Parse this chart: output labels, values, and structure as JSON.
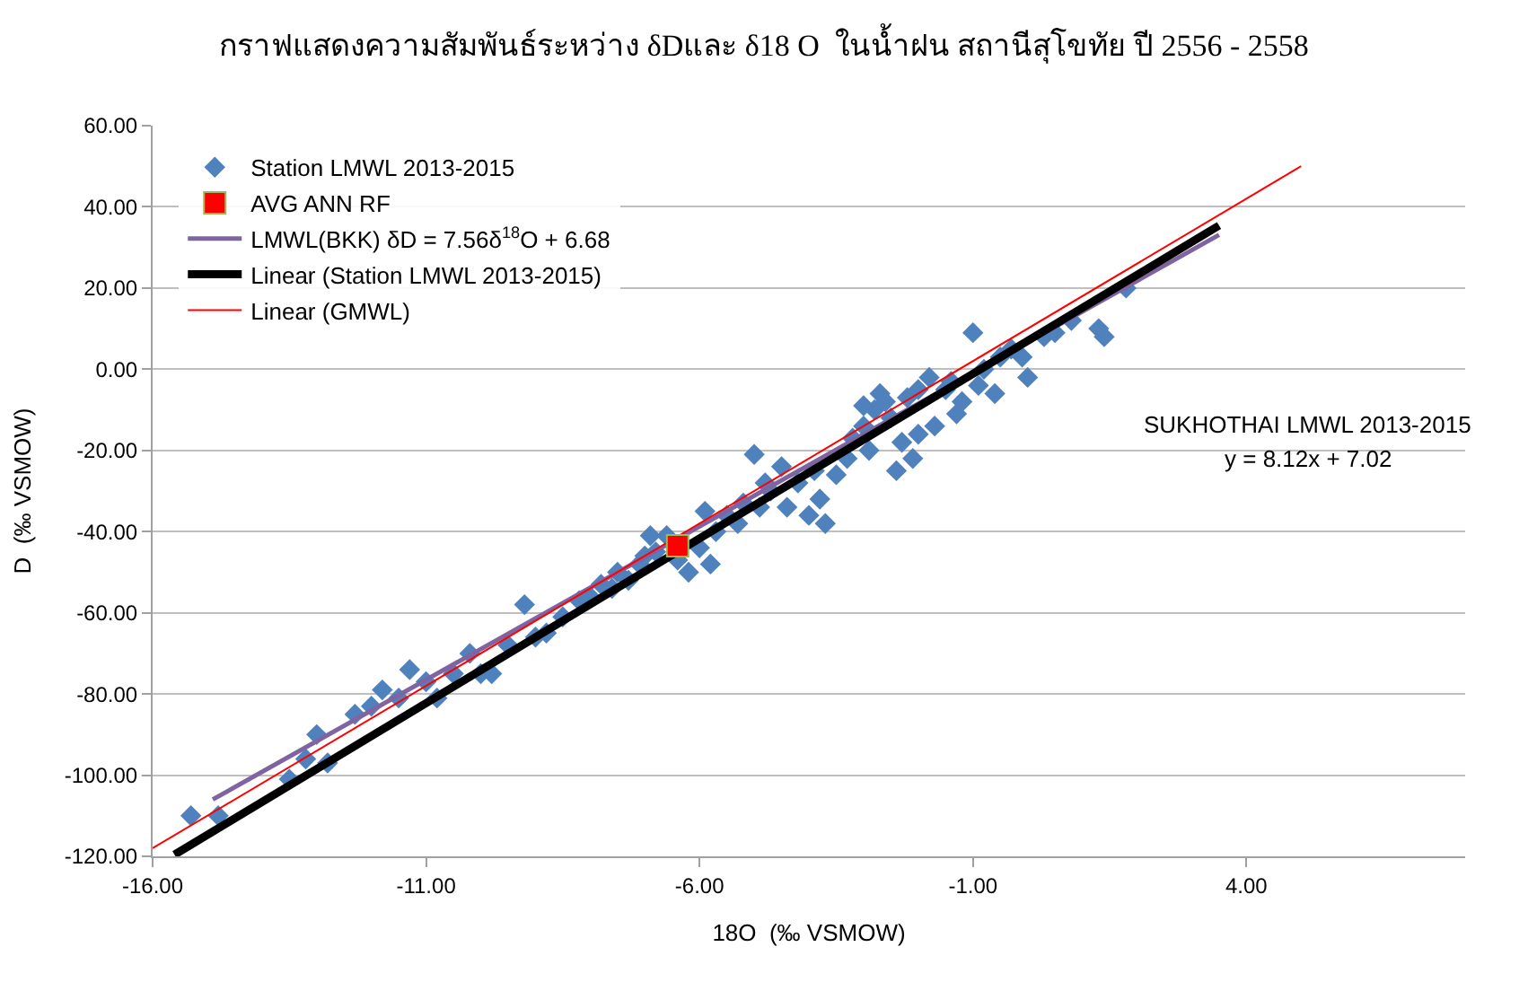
{
  "chart_data": {
    "type": "scatter",
    "title": "กราฟแสดงความสัมพันธ์ระหว่าง δDและ δ18 O  ในน้ำฝน สถานีสุโขทัย ปี 2556 - 2558",
    "xlabel": "18O  (‰ VSMOW)",
    "ylabel": "D  (‰ VSMOW)",
    "xlim": [
      -16,
      8
    ],
    "ylim": [
      -120,
      60
    ],
    "xticks": [
      {
        "value": -16,
        "label": "-16.00"
      },
      {
        "value": -11,
        "label": "-11.00"
      },
      {
        "value": -6,
        "label": "-6.00"
      },
      {
        "value": -1,
        "label": "-1.00"
      },
      {
        "value": 4,
        "label": "4.00"
      }
    ],
    "yticks": [
      {
        "value": -120,
        "label": "-120.00"
      },
      {
        "value": -100,
        "label": "-100.00"
      },
      {
        "value": -80,
        "label": "-80.00"
      },
      {
        "value": -60,
        "label": "-60.00"
      },
      {
        "value": -40,
        "label": "-40.00"
      },
      {
        "value": -20,
        "label": "-20.00"
      },
      {
        "value": 0,
        "label": "0.00"
      },
      {
        "value": 20,
        "label": "20.00"
      },
      {
        "value": 40,
        "label": "40.00"
      },
      {
        "value": 60,
        "label": "60.00"
      }
    ],
    "grid": "y",
    "legend": "top left",
    "series": [
      {
        "name": "Station LMWL 2013-2015",
        "marker": "diamond",
        "color": "#4f81bd",
        "x": [
          -15.3,
          -14.8,
          -13.5,
          -13.2,
          -13,
          -12.8,
          -12.3,
          -12,
          -11.8,
          -11.5,
          -11.3,
          -11,
          -10.8,
          -10.5,
          -10.2,
          -10,
          -9.8,
          -9.5,
          -9.2,
          -9,
          -8.8,
          -8.5,
          -8.2,
          -8,
          -7.8,
          -7.5,
          -7.3,
          -7.1,
          -7,
          -6.8,
          -6.6,
          -6.4,
          -6.2,
          -6,
          -5.8,
          -5.7,
          -5.5,
          -5.3,
          -5.2,
          -5,
          -4.9,
          -4.7,
          -4.5,
          -4.4,
          -4.2,
          -4,
          -3.8,
          -3.7,
          -3.5,
          -3.3,
          -3.2,
          -3,
          -2.9,
          -2.8,
          -2.7,
          -2.6,
          -2.5,
          -2.4,
          -2.3,
          -2.2,
          -2.1,
          -2,
          -1.8,
          -1.7,
          -1.5,
          -1.3,
          -1.2,
          -1,
          -0.9,
          -0.8,
          -0.6,
          -0.5,
          -0.3,
          -0.1,
          0,
          0.3,
          0.5,
          0.8,
          1.3,
          1.4,
          1.8,
          -6.9,
          -7.6,
          -5.9,
          -4.8,
          -3.9,
          -3,
          -2,
          -1.4
        ],
        "values": [
          -110,
          -110,
          -101,
          -96,
          -90,
          -97,
          -85,
          -83,
          -79,
          -81,
          -74,
          -77,
          -81,
          -75,
          -70,
          -75,
          -75,
          -68,
          -58,
          -66,
          -65,
          -61,
          -57,
          -56,
          -53,
          -50,
          -52,
          -48,
          -46,
          -45,
          -41,
          -47,
          -50,
          -44,
          -48,
          -40,
          -36,
          -38,
          -33,
          -21,
          -34,
          -30,
          -24,
          -34,
          -28,
          -36,
          -32,
          -38,
          -26,
          -22,
          -17,
          -14,
          -20,
          -10,
          -6,
          -8,
          -12,
          -25,
          -18,
          -7,
          -22,
          -16,
          -2,
          -14,
          -5,
          -11,
          -8,
          9,
          -4,
          0,
          -6,
          3,
          5,
          3,
          -2,
          8,
          9,
          12,
          10,
          8,
          20,
          -41,
          -54,
          -35,
          -28,
          -25,
          -9,
          -5,
          -3
        ]
      },
      {
        "name": "AVG ANN RF",
        "marker": "square",
        "color": "#ff0000",
        "x": [
          -6.4
        ],
        "values": [
          -43.5
        ]
      },
      {
        "name": "LMWL(BKK) δD = 7.56δ$^{18}$O + 6.68",
        "type": "line",
        "marker": "none",
        "color": "#8064a2",
        "x": [
          -14.9,
          3.5
        ],
        "values": [
          -106,
          33.1
        ]
      },
      {
        "name": "Linear (Station LMWL 2013-2015)",
        "type": "line",
        "marker": "none",
        "color": "#000000",
        "x": [
          -15.6,
          3.5
        ],
        "values": [
          -119.6,
          35.4
        ]
      },
      {
        "name": "Linear (GMWL)",
        "type": "line",
        "marker": "none",
        "color": "#ff0000",
        "x": [
          -16,
          5
        ],
        "values": [
          -118,
          50
        ]
      }
    ],
    "annotations": [
      "SUKHOTHAI LMWL 2013-2015",
      "y = 8.12x + 7.02"
    ]
  }
}
